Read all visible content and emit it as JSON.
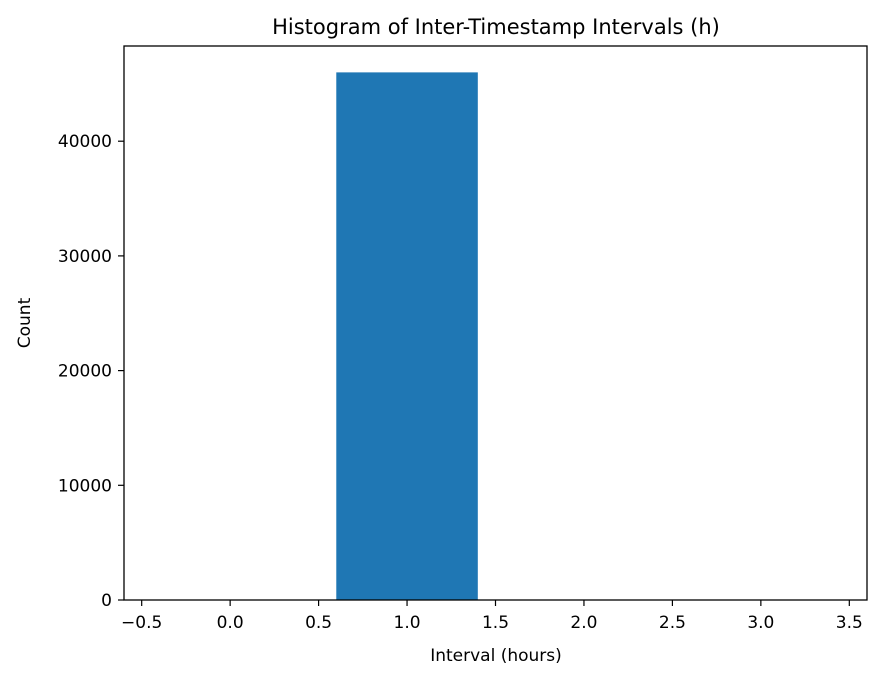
{
  "chart_data": {
    "type": "bar",
    "title": "Histogram of Inter-Timestamp Intervals (h)",
    "xlabel": "Interval (hours)",
    "ylabel": "Count",
    "xlim": [
      -0.6,
      3.6
    ],
    "ylim": [
      0,
      48300
    ],
    "x_ticks": [
      -0.5,
      0.0,
      0.5,
      1.0,
      1.5,
      2.0,
      2.5,
      3.0,
      3.5
    ],
    "x_tick_labels": [
      "−0.5",
      "0.0",
      "0.5",
      "1.0",
      "1.5",
      "2.0",
      "2.5",
      "3.0",
      "3.5"
    ],
    "y_ticks": [
      0,
      10000,
      20000,
      30000,
      40000
    ],
    "y_tick_labels": [
      "0",
      "10000",
      "20000",
      "30000",
      "40000"
    ],
    "bins": [
      {
        "x0": 0.6,
        "x1": 1.4,
        "count": 46000
      }
    ],
    "bar_color": "#1f77b4",
    "grid": false,
    "legend": "none"
  }
}
